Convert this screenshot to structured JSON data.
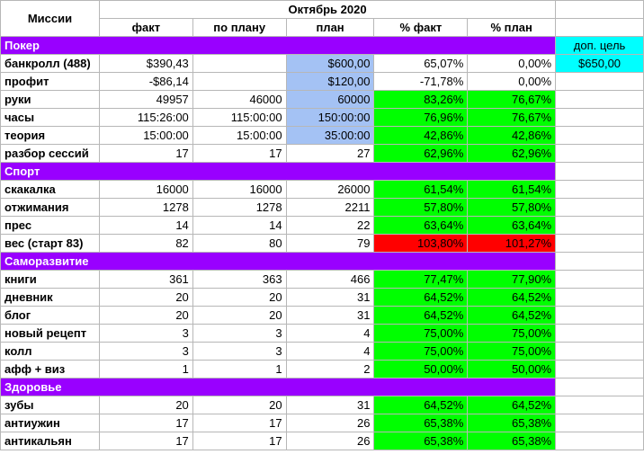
{
  "header": {
    "missions_label": "Миссии",
    "month_label": "Октябрь 2020",
    "columns": [
      "факт",
      "по плану",
      "план",
      "% факт",
      "% план"
    ]
  },
  "extra_goal": {
    "label": "доп. цель",
    "value": "$650,00"
  },
  "colors": {
    "section": "#9900ff",
    "plan_cell": "#a4c2f4",
    "good": "#00ff00",
    "bad": "#ff0000",
    "extra": "#00ffff"
  },
  "sections": [
    {
      "title": "Покер",
      "rows": [
        {
          "label": "банкролл (488)",
          "fact": "$390,43",
          "by_plan": "",
          "plan": "$600,00",
          "pct_fact": "65,07%",
          "pct_plan": "0,00%",
          "plan_hl": true,
          "pct_status": "none"
        },
        {
          "label": "профит",
          "fact": "-$86,14",
          "by_plan": "",
          "plan": "$120,00",
          "pct_fact": "-71,78%",
          "pct_plan": "0,00%",
          "plan_hl": true,
          "pct_status": "none"
        },
        {
          "label": "руки",
          "fact": "49957",
          "by_plan": "46000",
          "plan": "60000",
          "pct_fact": "83,26%",
          "pct_plan": "76,67%",
          "plan_hl": true,
          "pct_status": "good"
        },
        {
          "label": "часы",
          "fact": "115:26:00",
          "by_plan": "115:00:00",
          "plan": "150:00:00",
          "pct_fact": "76,96%",
          "pct_plan": "76,67%",
          "plan_hl": true,
          "pct_status": "good"
        },
        {
          "label": "теория",
          "fact": "15:00:00",
          "by_plan": "15:00:00",
          "plan": "35:00:00",
          "pct_fact": "42,86%",
          "pct_plan": "42,86%",
          "plan_hl": true,
          "pct_status": "good"
        },
        {
          "label": "разбор сессий",
          "fact": "17",
          "by_plan": "17",
          "plan": "27",
          "pct_fact": "62,96%",
          "pct_plan": "62,96%",
          "plan_hl": false,
          "pct_status": "good"
        }
      ]
    },
    {
      "title": "Спорт",
      "rows": [
        {
          "label": "скакалка",
          "fact": "16000",
          "by_plan": "16000",
          "plan": "26000",
          "pct_fact": "61,54%",
          "pct_plan": "61,54%",
          "plan_hl": false,
          "pct_status": "good"
        },
        {
          "label": "отжимания",
          "fact": "1278",
          "by_plan": "1278",
          "plan": "2211",
          "pct_fact": "57,80%",
          "pct_plan": "57,80%",
          "plan_hl": false,
          "pct_status": "good"
        },
        {
          "label": "прес",
          "fact": "14",
          "by_plan": "14",
          "plan": "22",
          "pct_fact": "63,64%",
          "pct_plan": "63,64%",
          "plan_hl": false,
          "pct_status": "good"
        },
        {
          "label": "вес (старт 83)",
          "fact": "82",
          "by_plan": "80",
          "plan": "79",
          "pct_fact": "103,80%",
          "pct_plan": "101,27%",
          "plan_hl": false,
          "pct_status": "bad"
        }
      ]
    },
    {
      "title": "Саморазвитие",
      "rows": [
        {
          "label": "книги",
          "fact": "361",
          "by_plan": "363",
          "plan": "466",
          "pct_fact": "77,47%",
          "pct_plan": "77,90%",
          "plan_hl": false,
          "pct_status": "good"
        },
        {
          "label": "дневник",
          "fact": "20",
          "by_plan": "20",
          "plan": "31",
          "pct_fact": "64,52%",
          "pct_plan": "64,52%",
          "plan_hl": false,
          "pct_status": "good"
        },
        {
          "label": "блог",
          "fact": "20",
          "by_plan": "20",
          "plan": "31",
          "pct_fact": "64,52%",
          "pct_plan": "64,52%",
          "plan_hl": false,
          "pct_status": "good"
        },
        {
          "label": "новый рецепт",
          "fact": "3",
          "by_plan": "3",
          "plan": "4",
          "pct_fact": "75,00%",
          "pct_plan": "75,00%",
          "plan_hl": false,
          "pct_status": "good"
        },
        {
          "label": "колл",
          "fact": "3",
          "by_plan": "3",
          "plan": "4",
          "pct_fact": "75,00%",
          "pct_plan": "75,00%",
          "plan_hl": false,
          "pct_status": "good"
        },
        {
          "label": "афф + виз",
          "fact": "1",
          "by_plan": "1",
          "plan": "2",
          "pct_fact": "50,00%",
          "pct_plan": "50,00%",
          "plan_hl": false,
          "pct_status": "good"
        }
      ]
    },
    {
      "title": "Здоровье",
      "rows": [
        {
          "label": "зубы",
          "fact": "20",
          "by_plan": "20",
          "plan": "31",
          "pct_fact": "64,52%",
          "pct_plan": "64,52%",
          "plan_hl": false,
          "pct_status": "good"
        },
        {
          "label": "антиужин",
          "fact": "17",
          "by_plan": "17",
          "plan": "26",
          "pct_fact": "65,38%",
          "pct_plan": "65,38%",
          "plan_hl": false,
          "pct_status": "good"
        },
        {
          "label": "антикальян",
          "fact": "17",
          "by_plan": "17",
          "plan": "26",
          "pct_fact": "65,38%",
          "pct_plan": "65,38%",
          "plan_hl": false,
          "pct_status": "good"
        }
      ]
    }
  ]
}
